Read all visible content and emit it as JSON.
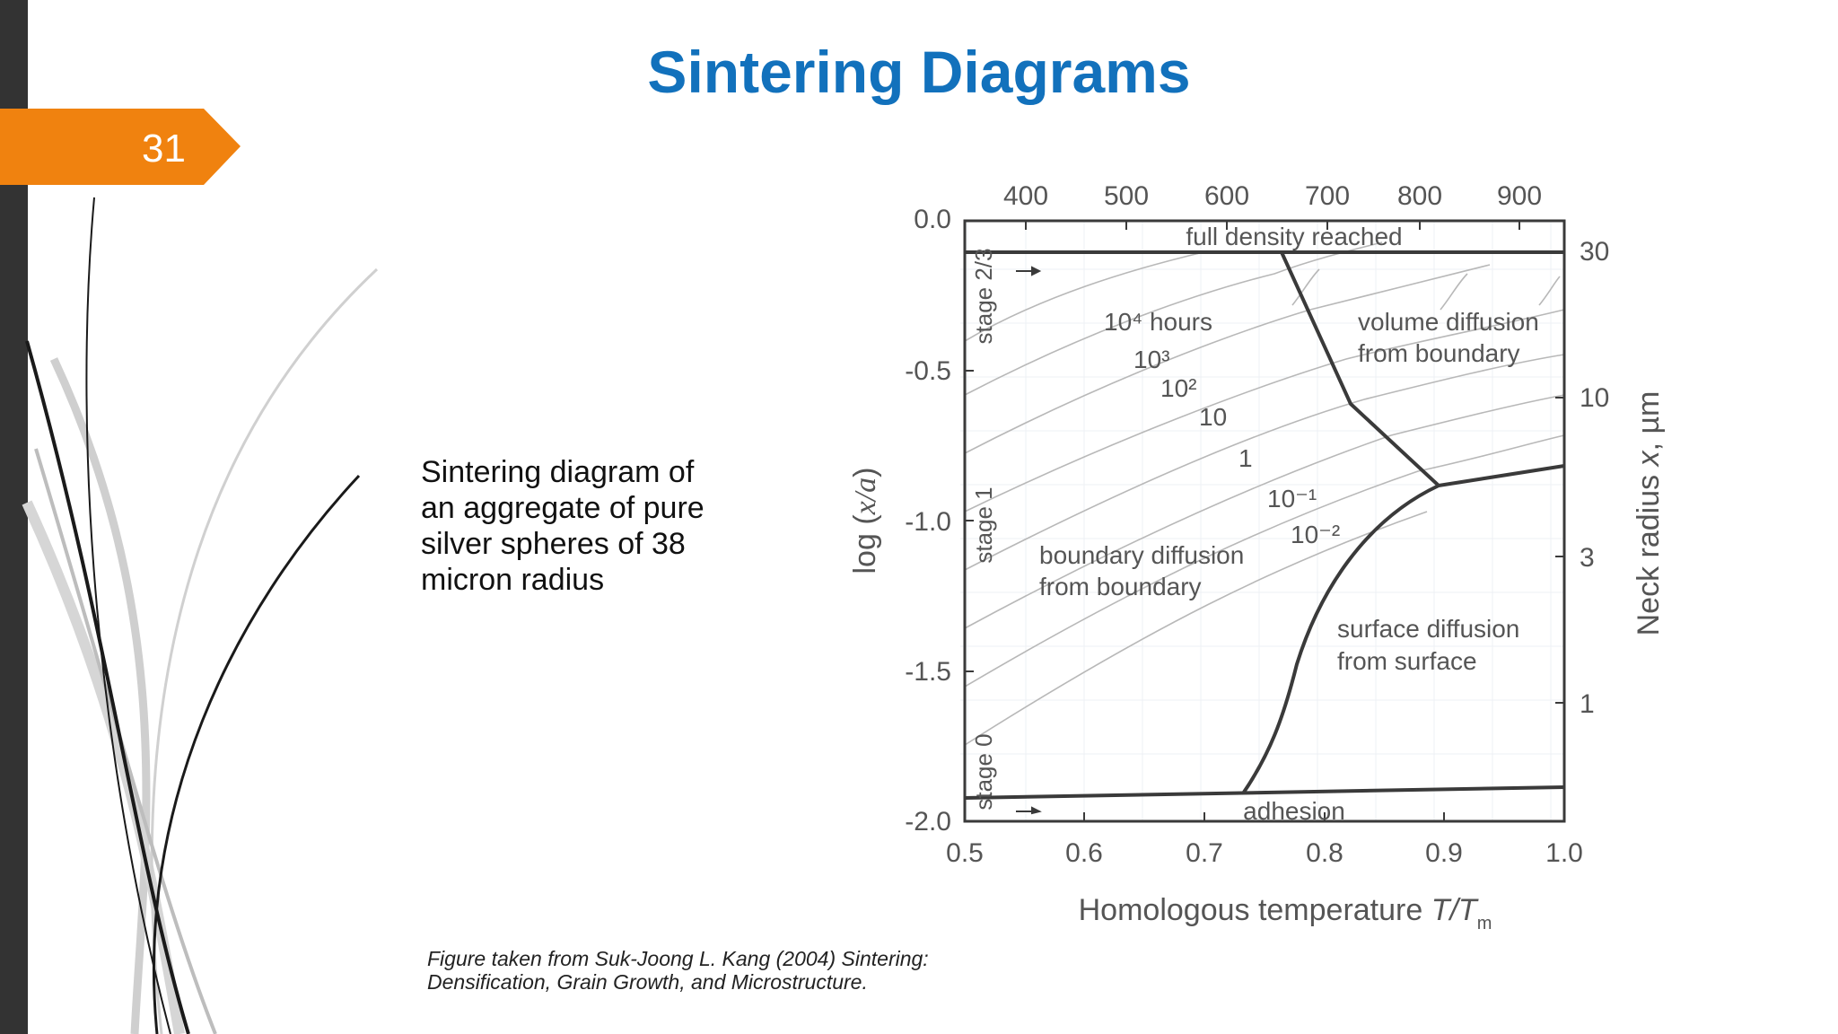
{
  "slide": {
    "title": "Sintering Diagrams",
    "number": "31",
    "caption": "Sintering diagram of\nan aggregate of pure\nsilver spheres of 38\nmicron radius",
    "source": "Figure taken from Suk-Joong L. Kang (2004) Sintering:\nDensification, Grain Growth, and Microstructure.",
    "accent_color": "#1271bc",
    "badge_color": "#f0820f"
  },
  "diagram": {
    "x_axis": {
      "label": "Homologous  temperature ",
      "label_var": "T/T",
      "label_sub": "m",
      "ticks": [
        "0.5",
        "0.6",
        "0.7",
        "0.8",
        "0.9",
        "1.0"
      ]
    },
    "top_axis": {
      "ticks": [
        "400",
        "500",
        "600",
        "700",
        "800",
        "900"
      ]
    },
    "y_axis": {
      "label_prefix": "log (",
      "label_var": "x/a",
      "label_suffix": ")",
      "ticks": [
        "0.0",
        "-0.5",
        "-1.0",
        "-1.5",
        "-2.0"
      ]
    },
    "right_axis": {
      "label_prefix": "Neck  radius ",
      "label_var": "x",
      "label_suffix": ", µm",
      "ticks": [
        "30",
        "10",
        "3",
        "1"
      ]
    },
    "stages": [
      "stage 2/3",
      "stage 1",
      "stage 0"
    ],
    "regions": {
      "full_density": "full density reached",
      "adhesion": "adhesion",
      "volume_diffusion_1": "volume diffusion",
      "volume_diffusion_2": "from boundary",
      "boundary_diffusion_1": "boundary diffusion",
      "boundary_diffusion_2": "from boundary",
      "surface_diffusion_1": "surface diffusion",
      "surface_diffusion_2": "from surface"
    },
    "time_contours": [
      "10⁴ hours",
      "10³",
      "10²",
      "10",
      "1",
      "10⁻¹",
      "10⁻²"
    ]
  }
}
